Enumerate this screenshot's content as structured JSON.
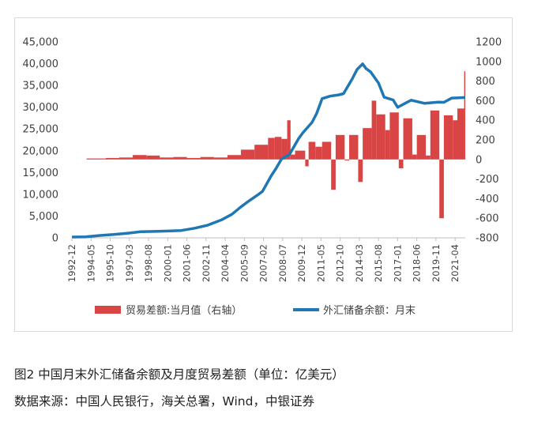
{
  "caption": "图2 中国月末外汇储备余额及月度贸易差额（单位：亿美元）",
  "source": "数据来源：中国人民银行，海关总署，Wind，中银证券",
  "chart_data": {
    "type": "bar+line",
    "title": "",
    "left_axis": {
      "ylim": [
        0,
        45000
      ],
      "ticks": [
        "0",
        "5,000",
        "10,000",
        "15,000",
        "20,000",
        "25,000",
        "30,000",
        "35,000",
        "40,000",
        "45,000"
      ]
    },
    "right_axis": {
      "ylim": [
        -800,
        1200
      ],
      "ticks": [
        "-800",
        "-600",
        "-400",
        "-200",
        "0",
        "200",
        "400",
        "600",
        "800",
        "1000",
        "1200"
      ]
    },
    "x_ticks": [
      "1992-12",
      "1994-05",
      "1995-10",
      "1997-03",
      "1998-08",
      "2000-01",
      "2001-06",
      "2002-11",
      "2004-04",
      "2005-09",
      "2007-02",
      "2008-07",
      "2009-12",
      "2011-05",
      "2012-10",
      "2014-03",
      "2015-08",
      "2017-01",
      "2018-06",
      "2019-11",
      "2021-04"
    ],
    "x_range": [
      "1992-12",
      "2022-01"
    ],
    "grid": false,
    "legend_position": "bottom",
    "colors": {
      "bars": "#d94545",
      "line": "#1f77b4"
    },
    "series": [
      {
        "name": "贸易差额:当月值（右轴）",
        "kind": "bar",
        "axis": "right",
        "x": [
          "1994-01",
          "1995-06",
          "1996-06",
          "1997-06",
          "1998-06",
          "1999-06",
          "2000-06",
          "2001-06",
          "2002-06",
          "2003-06",
          "2004-06",
          "2005-06",
          "2006-06",
          "2007-06",
          "2007-12",
          "2008-06",
          "2008-11",
          "2009-02",
          "2009-06",
          "2010-03",
          "2010-06",
          "2010-12",
          "2011-06",
          "2012-02",
          "2012-06",
          "2013-02",
          "2013-06",
          "2014-02",
          "2014-06",
          "2015-02",
          "2015-06",
          "2016-02",
          "2016-06",
          "2017-02",
          "2017-06",
          "2018-02",
          "2018-06",
          "2019-02",
          "2019-06",
          "2020-02",
          "2020-06",
          "2021-02",
          "2021-06",
          "2021-12"
        ],
        "values": [
          10,
          15,
          20,
          45,
          40,
          20,
          25,
          15,
          25,
          20,
          45,
          100,
          150,
          220,
          230,
          210,
          400,
          50,
          90,
          -70,
          180,
          130,
          180,
          -310,
          250,
          -10,
          250,
          -230,
          320,
          600,
          460,
          300,
          480,
          -90,
          420,
          50,
          250,
          40,
          500,
          -600,
          450,
          400,
          520,
          900
        ]
      },
      {
        "name": "外汇储备余额：月末",
        "kind": "line",
        "axis": "left",
        "x": [
          "1992-12",
          "1993-12",
          "1994-12",
          "1996-01",
          "1997-01",
          "1998-01",
          "1999-01",
          "2000-01",
          "2001-01",
          "2002-01",
          "2002-12",
          "2004-01",
          "2004-10",
          "2005-06",
          "2006-01",
          "2006-09",
          "2007-01",
          "2007-09",
          "2008-01",
          "2008-06",
          "2009-01",
          "2009-09",
          "2010-01",
          "2010-09",
          "2011-01",
          "2011-06",
          "2012-01",
          "2012-09",
          "2013-01",
          "2013-09",
          "2014-01",
          "2014-06",
          "2014-09",
          "2015-01",
          "2015-08",
          "2016-01",
          "2016-09",
          "2017-01",
          "2017-09",
          "2018-01",
          "2019-01",
          "2020-01",
          "2020-06",
          "2021-01",
          "2021-06",
          "2022-01"
        ],
        "values": [
          190,
          210,
          520,
          760,
          1060,
          1400,
          1470,
          1560,
          1690,
          2210,
          2860,
          4150,
          5400,
          7110,
          8450,
          9880,
          10660,
          14340,
          15900,
          18090,
          19130,
          22730,
          24150,
          26490,
          28470,
          31970,
          32540,
          32850,
          33120,
          36630,
          38660,
          39930,
          38870,
          38130,
          35570,
          32300,
          31660,
          29980,
          31080,
          31610,
          30880,
          31150,
          31120,
          32100,
          32140,
          32220
        ]
      }
    ]
  }
}
